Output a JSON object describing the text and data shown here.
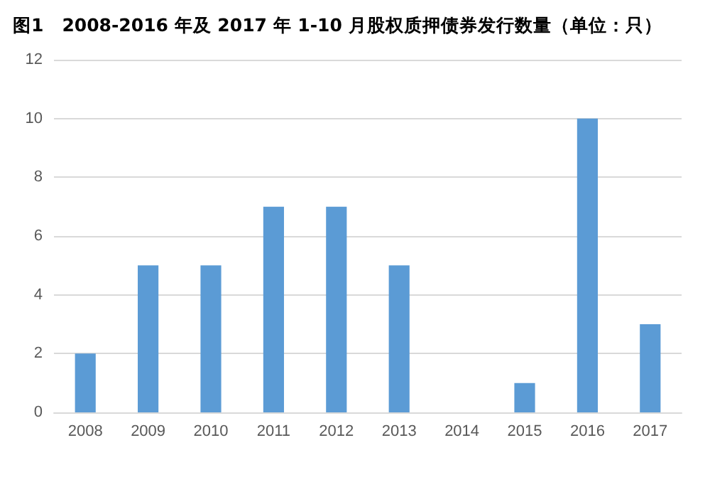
{
  "chart_data": {
    "type": "bar",
    "title": "图1　2008-2016 年及 2017 年 1-10 月股权质押债券发行数量（单位：只）",
    "categories": [
      "2008",
      "2009",
      "2010",
      "2011",
      "2012",
      "2013",
      "2014",
      "2015",
      "2016",
      "2017"
    ],
    "values": [
      2,
      5,
      5,
      7,
      7,
      5,
      0,
      1,
      10,
      3
    ],
    "color": "#5b9bd5",
    "ylim": [
      0,
      12
    ],
    "yticks": [
      0,
      2,
      4,
      6,
      8,
      10,
      12
    ],
    "grid": "y"
  }
}
